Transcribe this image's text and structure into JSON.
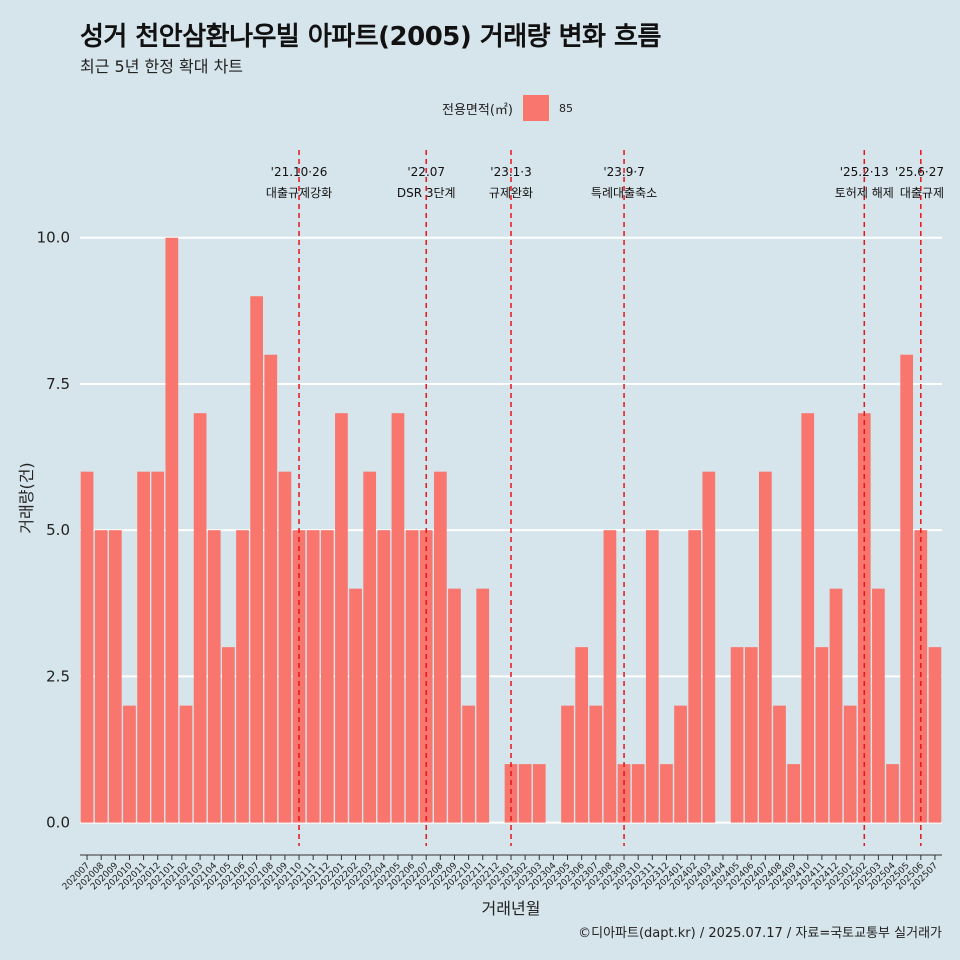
{
  "title": "성거 천안삼환나우빌 아파트(2005) 거래량 변화 흐름",
  "subtitle": "최근 5년 한정 확대 차트",
  "caption": "©디아파트(dapt.kr) / 2025.07.17 / 자료=국토교통부 실거래가",
  "legend": {
    "title": "전용면적(㎡)",
    "label": "85",
    "color": "#f8766d"
  },
  "chart_data": {
    "type": "bar",
    "xlabel": "거래년월",
    "ylabel": "거래량(건)",
    "ylim": [
      -0.4,
      11.5
    ],
    "yticks": [
      0.0,
      2.5,
      5.0,
      7.5,
      10.0
    ],
    "ytick_labels": [
      "0.0",
      "2.5",
      "5.0",
      "7.5",
      "10.0"
    ],
    "grid": true,
    "legend_position": "top",
    "bar_color": "#f8766d",
    "categories": [
      "202007",
      "202008",
      "202009",
      "202010",
      "202011",
      "202012",
      "202101",
      "202102",
      "202103",
      "202104",
      "202105",
      "202106",
      "202107",
      "202108",
      "202109",
      "202110",
      "202111",
      "202112",
      "202201",
      "202202",
      "202203",
      "202204",
      "202205",
      "202206",
      "202207",
      "202208",
      "202209",
      "202210",
      "202211",
      "202212",
      "202301",
      "202302",
      "202303",
      "202304",
      "202305",
      "202306",
      "202307",
      "202308",
      "202309",
      "202310",
      "202311",
      "202312",
      "202401",
      "202402",
      "202403",
      "202404",
      "202405",
      "202406",
      "202407",
      "202408",
      "202409",
      "202410",
      "202411",
      "202412",
      "202501",
      "202502",
      "202503",
      "202504",
      "202505",
      "202506",
      "202507"
    ],
    "series": [
      {
        "name": "85",
        "values": [
          6,
          5,
          5,
          2,
          6,
          6,
          10,
          2,
          7,
          5,
          3,
          5,
          9,
          8,
          6,
          5,
          5,
          5,
          7,
          4,
          6,
          5,
          7,
          5,
          5,
          6,
          4,
          2,
          4,
          0,
          1,
          1,
          1,
          0,
          2,
          3,
          2,
          5,
          1,
          1,
          5,
          1,
          2,
          5,
          6,
          0,
          3,
          3,
          6,
          2,
          1,
          7,
          3,
          4,
          2,
          7,
          4,
          1,
          8,
          5,
          3
        ]
      }
    ],
    "annotations": [
      {
        "x": "202110",
        "date": "'21.10·26",
        "label": "대출규제강화"
      },
      {
        "x": "202207",
        "date": "'22.07",
        "label": "DSR 3단계"
      },
      {
        "x": "202301",
        "date": "'23.1·3",
        "label": "규제완화"
      },
      {
        "x": "202309",
        "date": "'23.9·7",
        "label": "특례대출축소"
      },
      {
        "x": "202502",
        "date": "'25.2·13",
        "label": "토허제 해제"
      },
      {
        "x": "202506",
        "date": "'25.6·27",
        "label": "대출규제"
      }
    ]
  }
}
